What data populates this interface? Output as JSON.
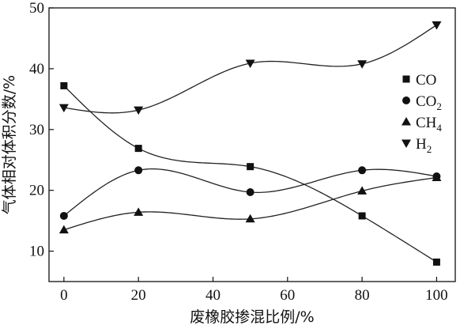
{
  "chart_data": {
    "type": "scatter",
    "title": "",
    "xlabel": "废橡胶掺混比例/%",
    "ylabel": "气体相对体积分数/%",
    "xlim": [
      -4,
      105
    ],
    "ylim": [
      5,
      50
    ],
    "xticks": [
      0,
      20,
      40,
      60,
      80,
      100
    ],
    "yticks": [
      10,
      20,
      30,
      40,
      50
    ],
    "x": [
      0,
      20,
      50,
      80,
      100
    ],
    "grid": false,
    "legend_position": "right",
    "fit_curves": true,
    "series": [
      {
        "name": "CO",
        "name_main": "CO",
        "name_sub": "",
        "marker": "square",
        "values": [
          37.2,
          26.9,
          23.9,
          15.8,
          8.2
        ]
      },
      {
        "name": "CO2",
        "name_main": "CO",
        "name_sub": "2",
        "marker": "circle",
        "values": [
          15.8,
          23.3,
          19.7,
          23.3,
          22.3
        ]
      },
      {
        "name": "CH4",
        "name_main": "CH",
        "name_sub": "4",
        "marker": "triangle-up",
        "values": [
          13.5,
          16.4,
          15.3,
          19.9,
          22.1
        ]
      },
      {
        "name": "H2",
        "name_main": "H",
        "name_sub": "2",
        "marker": "triangle-down",
        "values": [
          33.6,
          33.2,
          40.9,
          40.8,
          47.2
        ]
      }
    ]
  }
}
